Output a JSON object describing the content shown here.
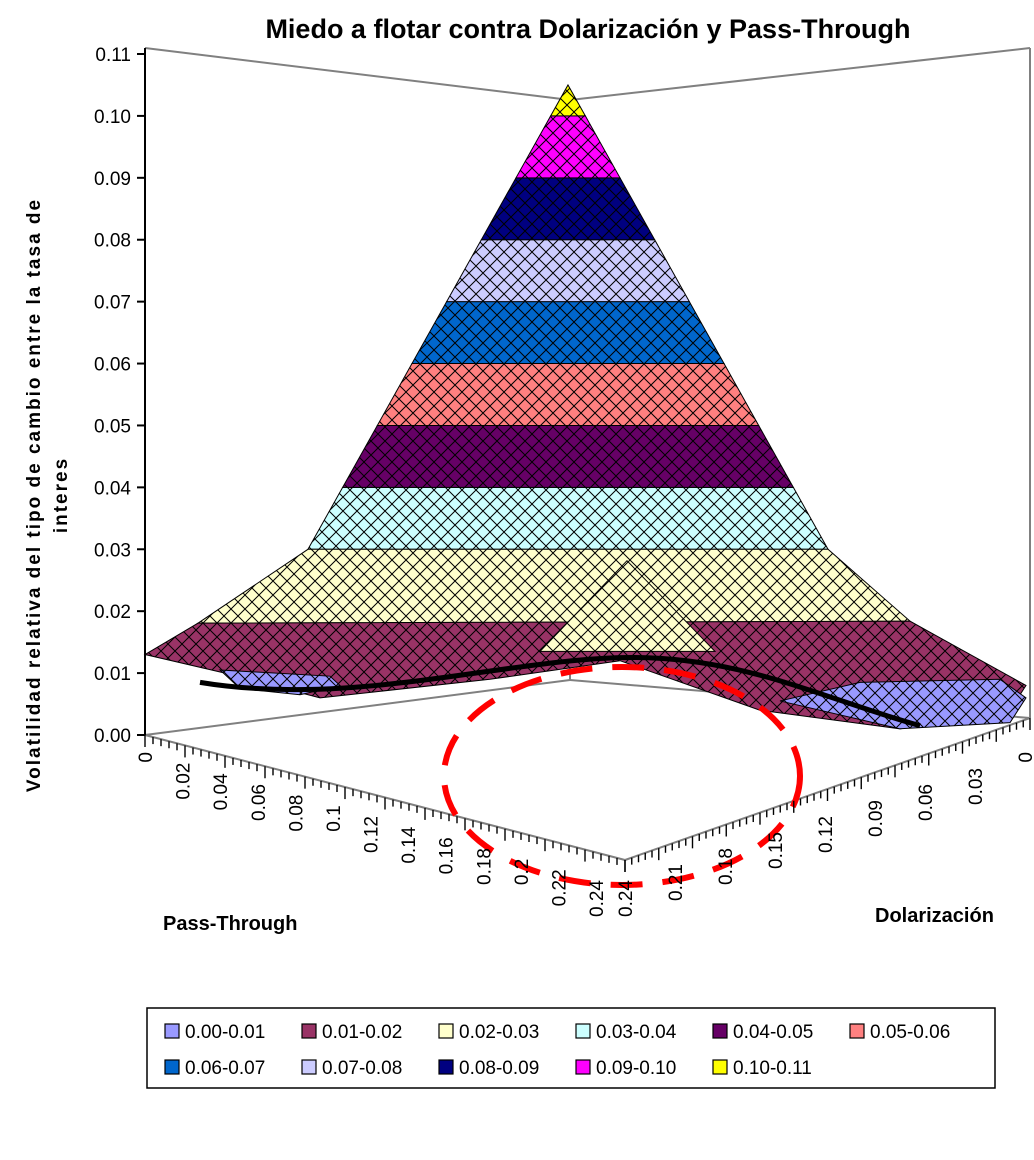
{
  "chart_data": {
    "type": "surface",
    "title": "Miedo a flotar contra Dolarización y Pass-Through",
    "ylabel_lines": [
      "Volatilidad relativa del tipo de cambio entre la tasa de",
      "interes"
    ],
    "xlabel": "Pass-Through",
    "zlabel": "Dolarización",
    "y_ticks": [
      "0.00",
      "0.01",
      "0.02",
      "0.03",
      "0.04",
      "0.05",
      "0.06",
      "0.07",
      "0.08",
      "0.09",
      "0.10",
      "0.11"
    ],
    "ylim": [
      0,
      0.11
    ],
    "pass_through_ticks": [
      "0",
      "0.02",
      "0.04",
      "0.06",
      "0.08",
      "0.1",
      "0.12",
      "0.14",
      "0.16",
      "0.18",
      "0.2",
      "0.22",
      "0.24"
    ],
    "dolarizacion_ticks": [
      "0.24",
      "0.21",
      "0.18",
      "0.15",
      "0.12",
      "0.09",
      "0.06",
      "0.03",
      "0"
    ],
    "bands": [
      {
        "range": "0.00-0.01",
        "from": 0.0,
        "to": 0.01,
        "color": "#9999ff"
      },
      {
        "range": "0.01-0.02",
        "from": 0.01,
        "to": 0.02,
        "color": "#993366"
      },
      {
        "range": "0.02-0.03",
        "from": 0.02,
        "to": 0.03,
        "color": "#ffffcc"
      },
      {
        "range": "0.03-0.04",
        "from": 0.03,
        "to": 0.04,
        "color": "#ccffff"
      },
      {
        "range": "0.04-0.05",
        "from": 0.04,
        "to": 0.05,
        "color": "#660066"
      },
      {
        "range": "0.05-0.06",
        "from": 0.05,
        "to": 0.06,
        "color": "#ff8080"
      },
      {
        "range": "0.06-0.07",
        "from": 0.06,
        "to": 0.07,
        "color": "#0066cc"
      },
      {
        "range": "0.07-0.08",
        "from": 0.07,
        "to": 0.08,
        "color": "#ccccff"
      },
      {
        "range": "0.08-0.09",
        "from": 0.08,
        "to": 0.09,
        "color": "#000080"
      },
      {
        "range": "0.09-0.10",
        "from": 0.09,
        "to": 0.1,
        "color": "#ff00ff"
      },
      {
        "range": "0.10-0.11",
        "from": 0.1,
        "to": 0.11,
        "color": "#ffff00"
      }
    ],
    "peak_value": 0.105,
    "highlight_color": "#ff0000"
  }
}
